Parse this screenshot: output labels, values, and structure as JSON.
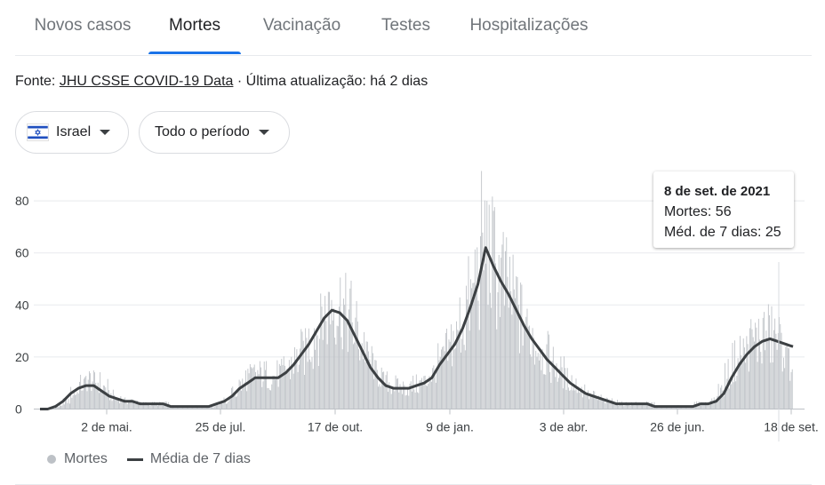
{
  "tabs": [
    {
      "label": "Novos casos"
    },
    {
      "label": "Mortes"
    },
    {
      "label": "Vacinação"
    },
    {
      "label": "Testes"
    },
    {
      "label": "Hospitalizações"
    }
  ],
  "active_tab": "Mortes",
  "source": {
    "prefix": "Fonte:",
    "link": "JHU CSSE COVID-19 Data",
    "suffix": "· Última atualização: há 2 dias"
  },
  "filters": {
    "country": "Israel",
    "period": "Todo o período"
  },
  "tooltip": {
    "date": "8 de set. de 2021",
    "deaths_line": "Mortes: 56",
    "avg_line": "Méd. de 7 dias: 25"
  },
  "legend": {
    "bars": "Mortes",
    "line": "Média de 7 dias"
  },
  "colors": {
    "bars": "#bdc1c6",
    "line": "#3c4043",
    "accent": "#1a73e8",
    "grid": "#e8eaed"
  },
  "chart_data": {
    "type": "bar",
    "y_ticks": [
      0,
      20,
      40,
      60,
      80
    ],
    "ylim": [
      0,
      92
    ],
    "x_tick_labels": [
      "2 de mai.",
      "25 de jul.",
      "17 de out.",
      "9 de jan.",
      "3 de abr.",
      "26 de jun.",
      "18 de set."
    ],
    "series": [
      {
        "name": "Mortes",
        "kind": "bars",
        "weekly_approx_daily_values": [
          0,
          0,
          1,
          3,
          6,
          9,
          11,
          10,
          8,
          5,
          4,
          3,
          3,
          2,
          2,
          2,
          2,
          1,
          1,
          1,
          1,
          1,
          1,
          2,
          3,
          6,
          9,
          12,
          13,
          13,
          12,
          13,
          15,
          18,
          21,
          25,
          30,
          36,
          40,
          39,
          35,
          30,
          24,
          18,
          13,
          10,
          9,
          8,
          8,
          9,
          10,
          13,
          17,
          21,
          26,
          32,
          40,
          50,
          62,
          56,
          50,
          45,
          40,
          34,
          28,
          24,
          20,
          17,
          14,
          11,
          9,
          7,
          5,
          4,
          3,
          3,
          2,
          2,
          2,
          2,
          2,
          1,
          1,
          1,
          1,
          1,
          2,
          2,
          3,
          7,
          13,
          18,
          21,
          25,
          26,
          28,
          27,
          25,
          18
        ]
      },
      {
        "name": "Média de 7 dias",
        "kind": "line",
        "weekly_values": [
          0,
          0,
          1,
          3,
          6,
          8,
          9,
          9,
          7,
          5,
          4,
          3,
          3,
          2,
          2,
          2,
          2,
          1,
          1,
          1,
          1,
          1,
          1,
          2,
          3,
          5,
          8,
          10,
          12,
          12,
          12,
          12,
          14,
          17,
          21,
          25,
          30,
          35,
          38,
          37,
          34,
          28,
          22,
          16,
          12,
          9,
          8,
          8,
          8,
          9,
          10,
          12,
          17,
          21,
          25,
          31,
          39,
          48,
          62,
          55,
          49,
          44,
          38,
          32,
          27,
          23,
          19,
          16,
          13,
          10,
          8,
          6,
          5,
          4,
          3,
          2,
          2,
          2,
          2,
          2,
          1,
          1,
          1,
          1,
          1,
          1,
          2,
          2,
          3,
          6,
          12,
          17,
          21,
          24,
          26,
          27,
          26,
          25,
          24
        ]
      }
    ],
    "highlight": {
      "date": "8 de set. de 2021",
      "deaths": 56,
      "avg_7d": 25
    }
  }
}
